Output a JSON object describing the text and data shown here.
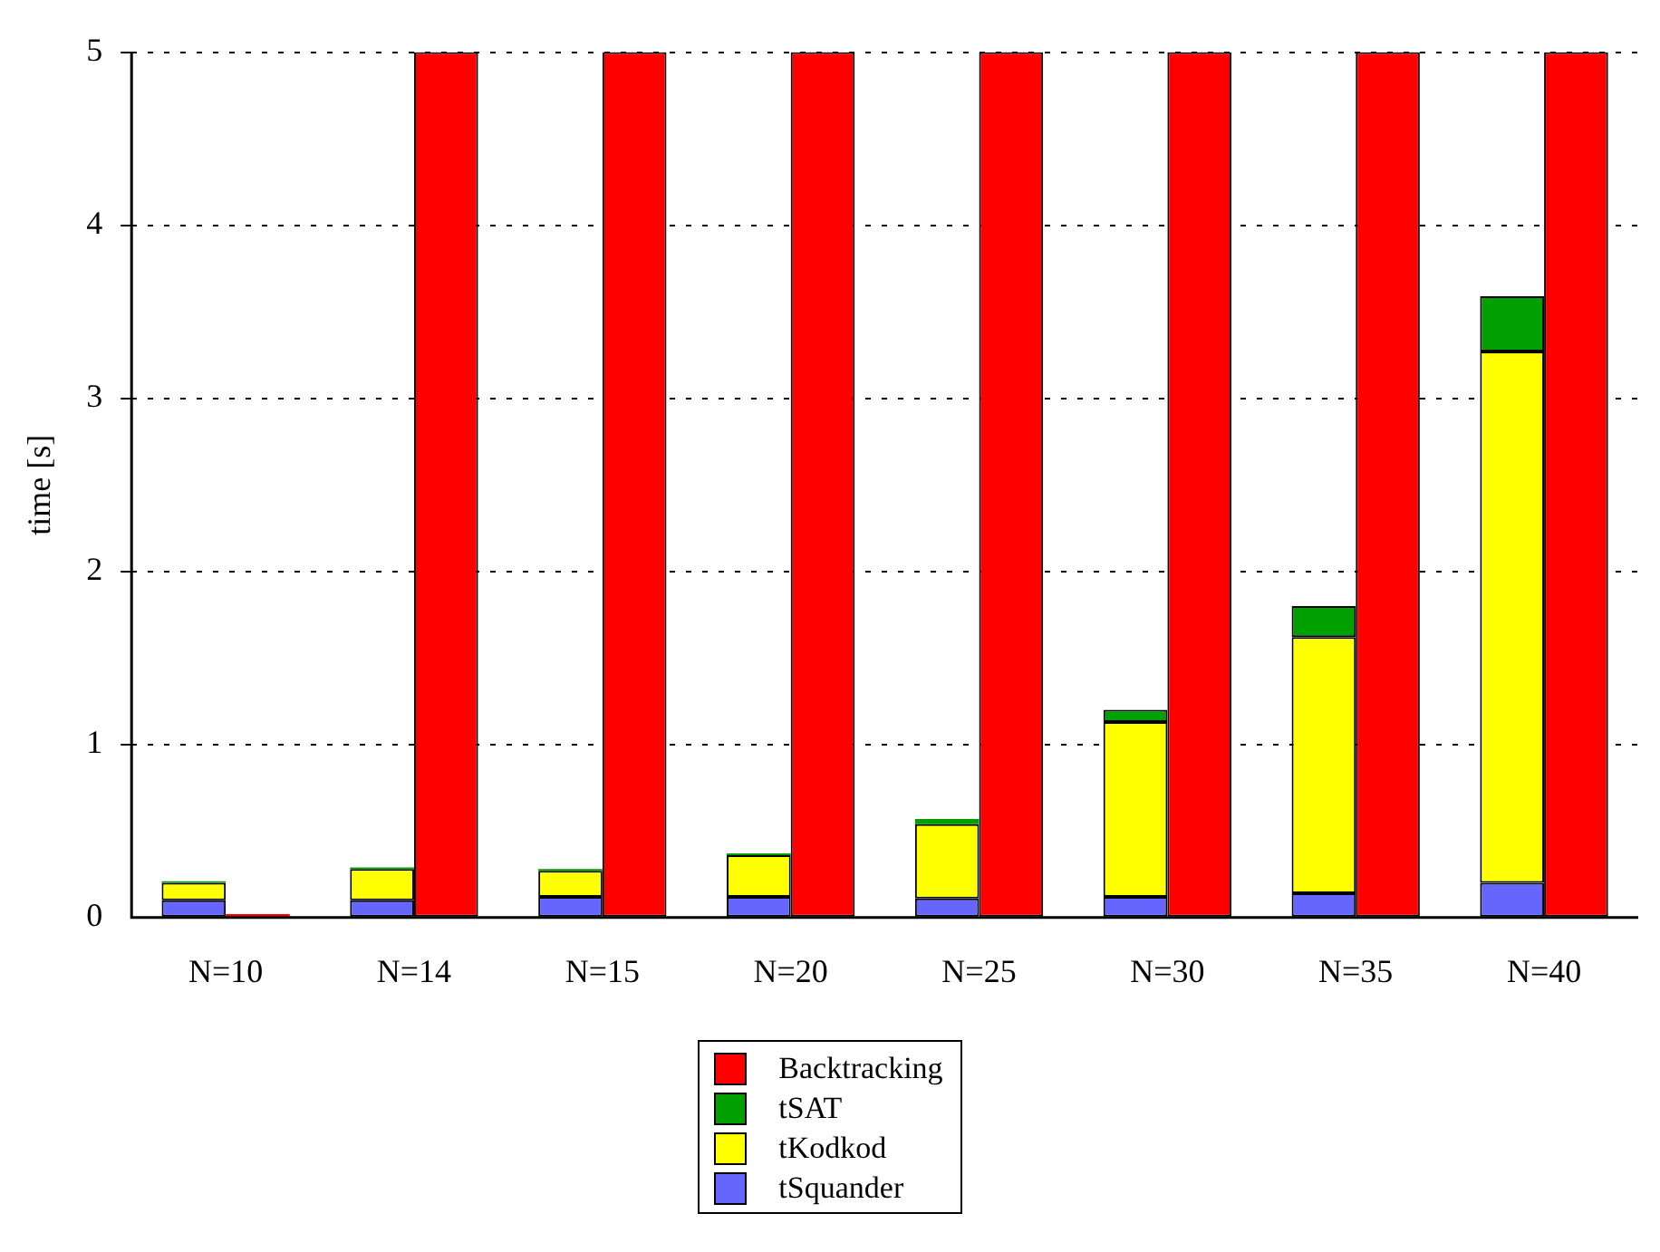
{
  "chart_data": {
    "type": "bar",
    "ylabel": "time [s]",
    "categories": [
      "N=10",
      "N=14",
      "N=15",
      "N=20",
      "N=25",
      "N=30",
      "N=35",
      "N=40"
    ],
    "series": [
      {
        "name": "tSquander",
        "color": "#6666ff",
        "base": [
          0,
          0,
          0,
          0,
          0,
          0,
          0,
          0
        ],
        "values": [
          0.1,
          0.1,
          0.12,
          0.12,
          0.11,
          0.12,
          0.14,
          0.2
        ]
      },
      {
        "name": "tKodkod",
        "color": "#ffff00",
        "base": [
          0.1,
          0.1,
          0.12,
          0.12,
          0.11,
          0.12,
          0.14,
          0.2
        ],
        "values": [
          0.1,
          0.18,
          0.15,
          0.24,
          0.43,
          1.01,
          1.48,
          3.07
        ]
      },
      {
        "name": "tSAT",
        "color": "#00a000",
        "base": [
          0.2,
          0.28,
          0.27,
          0.36,
          0.54,
          1.13,
          1.62,
          3.27
        ],
        "values": [
          0.01,
          0.01,
          0.01,
          0.01,
          0.03,
          0.07,
          0.18,
          0.32
        ]
      },
      {
        "name": "Backtracking",
        "color": "#ff0000",
        "values": [
          0.02,
          5,
          5,
          5,
          5,
          5,
          5,
          5
        ]
      }
    ],
    "ylim": [
      0,
      5
    ],
    "yticks": [
      0,
      1,
      2,
      3,
      4,
      5
    ],
    "grid": "y",
    "legend": "bottom"
  }
}
